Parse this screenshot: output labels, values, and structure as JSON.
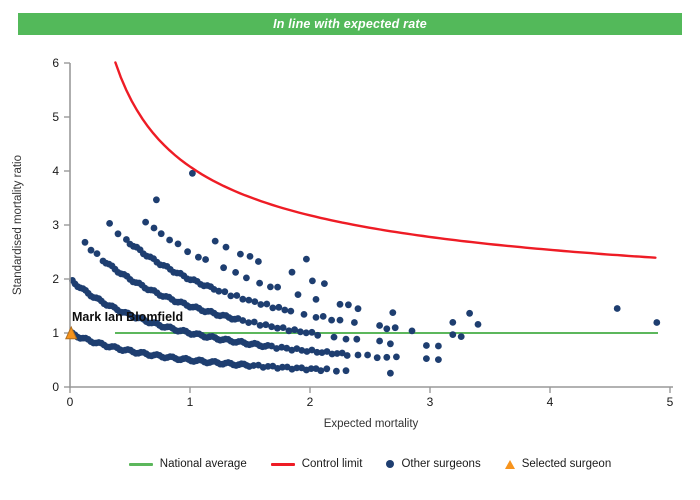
{
  "banner": {
    "title": "In line with expected rate",
    "bg_color": "#53b95a",
    "text_color": "#ffffff"
  },
  "chart_data": {
    "type": "scatter",
    "title": "",
    "xlabel": "Expected mortality",
    "ylabel": "Standardised mortality ratio",
    "xlim": [
      0,
      5
    ],
    "ylim": [
      0,
      6
    ],
    "x_ticks": [
      0,
      1,
      2,
      3,
      4,
      5
    ],
    "y_ticks": [
      0,
      1,
      2,
      3,
      4,
      5,
      6
    ],
    "grid": "off",
    "colors": {
      "national_average": "#5cb75c",
      "control_limit": "#ee1c25",
      "other_surgeons": "#1e3e70",
      "selected_surgeon": "#f7941d",
      "selected_surgeon_border": "#b06f1f",
      "axis": "#999999",
      "tick_text": "#1a1a1a"
    },
    "national_average": {
      "y": 1,
      "x_start": 0.375,
      "x_end": 4.9
    },
    "control_limit": {
      "formula": "smr = 1 + 3.08 / sqrt(expected_mortality)",
      "offset": 1,
      "coefficient": 3.08,
      "x_start": 0.378,
      "x_end": 4.89
    },
    "selected_surgeon": {
      "name": "Mark Ian Blomfield",
      "expected_mortality": 0.01,
      "smr": 1.0
    },
    "other_surgeons": {
      "smr_rule": "smr = deaths / (1 + expected_mortality)",
      "bands": [
        {
          "deaths": 1,
          "runs": [
            [
              0.02,
              1.5,
              0.022
            ],
            [
              1.53,
              2.1,
              0.04
            ],
            [
              2.14,
              2.3,
              0.08
            ]
          ],
          "dots": [
            2.67
          ]
        },
        {
          "deaths": 2,
          "runs": [
            [
              0.02,
              1.65,
              0.022
            ],
            [
              1.68,
              2.35,
              0.042
            ],
            [
              2.4,
              2.72,
              0.08
            ]
          ],
          "dots": [
            2.97,
            3.07
          ]
        },
        {
          "deaths": 3,
          "runs": [
            [
              0.125,
              0.3,
              0.05
            ],
            [
              0.3,
              1.4,
              0.025
            ],
            [
              1.44,
              2.1,
              0.048
            ]
          ],
          "dots": [
            2.2,
            2.3,
            2.39,
            2.58,
            2.67,
            2.97,
            3.07
          ]
        },
        {
          "deaths": 4,
          "runs": [
            [
              0.33,
              0.5,
              0.07
            ],
            [
              0.5,
              1.2,
              0.028
            ],
            [
              1.24,
              1.85,
              0.05
            ]
          ],
          "dots": [
            1.95,
            2.05,
            2.11,
            2.18,
            2.25,
            2.37,
            2.58,
            2.64,
            2.71,
            2.85,
            3.19,
            3.26
          ]
        },
        {
          "deaths": 5,
          "runs": [],
          "dots": [
            0.63,
            0.7,
            0.76,
            0.83,
            0.9,
            0.98,
            1.07,
            1.13,
            1.28,
            1.38,
            1.47,
            1.58,
            1.67,
            1.73,
            1.9,
            2.05,
            2.25,
            2.32,
            2.4,
            2.69,
            3.19,
            3.4
          ]
        },
        {
          "deaths": 6,
          "runs": [],
          "dots": [
            0.72,
            1.21,
            1.3,
            1.42,
            1.5,
            1.57,
            1.85,
            2.02,
            2.12,
            3.33
          ]
        },
        {
          "deaths": 7,
          "runs": [],
          "dots": [
            1.97,
            4.89
          ]
        },
        {
          "deaths": 8,
          "runs": [],
          "dots": [
            1.02,
            4.56
          ]
        }
      ]
    }
  },
  "legend": {
    "items": [
      {
        "label": "National average",
        "type": "line",
        "color": "#5cb75c"
      },
      {
        "label": "Control limit",
        "type": "line",
        "color": "#ee1c25"
      },
      {
        "label": "Other surgeons",
        "type": "dot",
        "color": "#1e3e70"
      },
      {
        "label": "Selected surgeon",
        "type": "triangle",
        "color": "#f7941d"
      }
    ]
  }
}
